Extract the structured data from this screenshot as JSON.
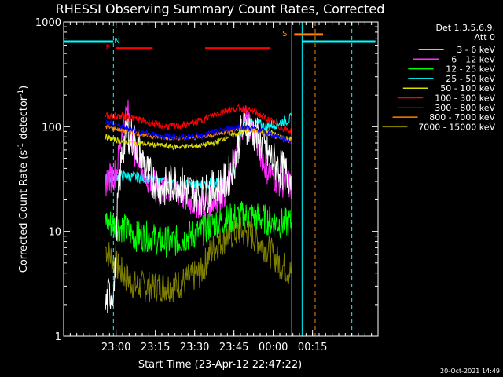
{
  "chart_data": {
    "type": "line",
    "title": "RHESSI Observing Summary Count Rates, Corrected",
    "xlabel": "Start Time (23-Apr-12 22:47:22)",
    "ylabel": "Corrected Count Rate (s",
    "ylabel_sup": "-1",
    "ylabel_rest": " detector",
    "ylabel_sup2": "-1",
    "ylabel_end": ")",
    "y_scale": "log",
    "ylim": [
      1,
      1000
    ],
    "xlim_minutes_after_start": [
      -7.4,
      112.6
    ],
    "x_tick_labels": [
      "23:00",
      "23:15",
      "23:30",
      "23:45",
      "00:00",
      "00:15"
    ],
    "x_tick_minutes": [
      12.6,
      27.6,
      42.6,
      57.6,
      72.6,
      87.6
    ],
    "y_tick_labels": [
      "1",
      "10",
      "100",
      "1000"
    ],
    "y_tick_values": [
      1,
      10,
      100,
      1000
    ],
    "legend_header": [
      "Det 1,3,5,6,9,",
      "Att 0"
    ],
    "legend_position": "right",
    "timestamp": "20-Oct-2021 14:49",
    "data_window": [
      8.6,
      79.6
    ],
    "series": [
      {
        "name": "3 - 6 keV",
        "color": "#ffffff",
        "t": [
          8.6,
          10,
          12,
          13,
          15,
          17,
          20,
          25,
          30,
          35,
          40,
          45,
          50,
          55,
          58,
          60,
          62,
          65,
          68,
          70,
          72,
          75,
          78,
          79.6
        ],
        "v": [
          2,
          2.5,
          3,
          15,
          60,
          90,
          70,
          35,
          25,
          30,
          25,
          22,
          25,
          30,
          50,
          80,
          110,
          90,
          70,
          55,
          50,
          40,
          35,
          33
        ]
      },
      {
        "name": "6 - 12 keV",
        "color": "#ff2bff",
        "t": [
          8.6,
          10,
          12,
          13,
          15,
          17,
          20,
          25,
          30,
          35,
          40,
          45,
          50,
          55,
          58,
          60,
          62,
          65,
          68,
          70,
          72,
          75,
          78,
          79.6
        ],
        "v": [
          30,
          32,
          35,
          40,
          100,
          140,
          55,
          30,
          25,
          25,
          20,
          18,
          20,
          25,
          45,
          90,
          130,
          90,
          55,
          40,
          35,
          30,
          28,
          27
        ]
      },
      {
        "name": "12 - 25 keV",
        "color": "#00ff00",
        "t": [
          8.6,
          10,
          15,
          20,
          25,
          30,
          35,
          40,
          45,
          50,
          55,
          60,
          65,
          70,
          75,
          79.6
        ],
        "v": [
          13,
          12,
          11,
          9,
          9,
          8,
          8,
          9,
          10,
          12,
          13,
          14,
          14,
          13,
          12,
          12
        ]
      },
      {
        "name": "25 - 50 keV",
        "color": "#00ffff",
        "t": [
          8.6,
          10,
          15,
          20,
          25,
          30,
          35,
          40,
          45,
          50,
          55,
          58,
          60,
          62,
          65,
          70,
          75,
          79.6
        ],
        "v": [
          32,
          33,
          34,
          33,
          32,
          30,
          28,
          28,
          28,
          29,
          30,
          40,
          80,
          120,
          110,
          100,
          110,
          120
        ]
      },
      {
        "name": "50 - 100 keV",
        "color": "#dddd00",
        "t": [
          8.6,
          10,
          15,
          20,
          25,
          30,
          35,
          40,
          45,
          50,
          55,
          60,
          65,
          70,
          75,
          79.6
        ],
        "v": [
          80,
          78,
          72,
          70,
          68,
          66,
          64,
          65,
          66,
          70,
          80,
          88,
          95,
          90,
          82,
          75
        ]
      },
      {
        "name": "100 - 300 keV",
        "color": "#ff0000",
        "t": [
          8.6,
          10,
          15,
          20,
          25,
          30,
          35,
          40,
          45,
          50,
          55,
          60,
          65,
          70,
          75,
          79.6
        ],
        "v": [
          130,
          128,
          125,
          120,
          110,
          102,
          100,
          105,
          115,
          130,
          145,
          150,
          140,
          120,
          100,
          90
        ]
      },
      {
        "name": "300 - 800 keV",
        "color": "#0000ff",
        "t": [
          8.6,
          10,
          15,
          20,
          25,
          30,
          35,
          40,
          45,
          50,
          55,
          60,
          65,
          70,
          75,
          79.6
        ],
        "v": [
          112,
          110,
          100,
          92,
          86,
          82,
          80,
          80,
          82,
          88,
          95,
          100,
          96,
          88,
          80,
          72
        ]
      },
      {
        "name": "800 - 7000 keV",
        "color": "#ff8000",
        "t": [
          8.6,
          10,
          15,
          20,
          25,
          30,
          35,
          40,
          45,
          50,
          55,
          60,
          65,
          70,
          75,
          79.6
        ],
        "v": [
          100,
          98,
          92,
          87,
          82,
          79,
          78,
          78,
          80,
          84,
          90,
          96,
          92,
          85,
          78,
          72
        ]
      },
      {
        "name": "7000 - 15000 keV",
        "color": "#808000",
        "t": [
          8.6,
          10,
          12,
          15,
          20,
          25,
          30,
          35,
          40,
          45,
          48,
          50,
          55,
          60,
          65,
          70,
          75,
          79.6
        ],
        "v": [
          7,
          6,
          5,
          4,
          3,
          3,
          3,
          3,
          3.5,
          4,
          6,
          7,
          9,
          10,
          9,
          7,
          5,
          4
        ]
      }
    ],
    "flag_bars": [
      {
        "label": "N",
        "color": "#00ffff",
        "y": 650,
        "segments": [
          [
            -7.4,
            11.6
          ],
          [
            83.6,
            111.6
          ]
        ],
        "label_minute": 13
      },
      {
        "label": "F",
        "color": "#ff0000",
        "y": 560,
        "segments": [
          [
            12.6,
            26.6
          ],
          [
            46.6,
            71.6
          ]
        ],
        "label_minute": 9.5
      },
      {
        "label": "S",
        "color": "#ff8000",
        "y": 760,
        "segments": [
          [
            80.6,
            91.6
          ]
        ],
        "label_minute": 77
      }
    ],
    "vertical_markers": [
      {
        "minute": 11.6,
        "color": "#00ffff",
        "dash": true
      },
      {
        "minute": 83.6,
        "color": "#00ffff",
        "dash": false
      },
      {
        "minute": 102.6,
        "color": "#00ffff",
        "dash": true
      },
      {
        "minute": 79.6,
        "color": "#ff8000",
        "dash": false
      },
      {
        "minute": 88.6,
        "color": "#ff8000",
        "dash": true
      }
    ]
  }
}
